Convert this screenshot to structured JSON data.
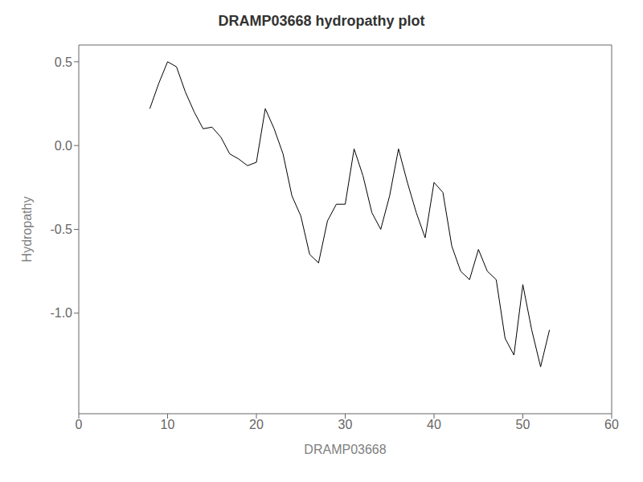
{
  "chart_data": {
    "type": "line",
    "title": "DRAMP03668 hydropathy plot",
    "xlabel": "DRAMP03668",
    "ylabel": "Hydropathy",
    "xlim": [
      0,
      60
    ],
    "ylim": [
      -1.6,
      0.6
    ],
    "xticks": [
      0,
      10,
      20,
      30,
      40,
      50,
      60
    ],
    "yticks": [
      0.5,
      {
        "value": 0.0,
        "label": "0.0"
      },
      -0.5,
      {
        "value": -1.0,
        "label": "-1.0"
      }
    ],
    "color": "#000000",
    "grid": false,
    "x": [
      8,
      9,
      10,
      11,
      12,
      13,
      14,
      15,
      16,
      17,
      18,
      19,
      20,
      21,
      22,
      23,
      24,
      25,
      26,
      27,
      28,
      29,
      30,
      31,
      32,
      33,
      34,
      35,
      36,
      37,
      38,
      39,
      40,
      41,
      42,
      43,
      44,
      45,
      46,
      47,
      48,
      49,
      50,
      51,
      52,
      53
    ],
    "values": [
      0.22,
      0.37,
      0.5,
      0.47,
      0.32,
      0.2,
      0.1,
      0.11,
      0.05,
      -0.05,
      -0.08,
      -0.12,
      -0.1,
      0.22,
      0.1,
      -0.05,
      -0.3,
      -0.42,
      -0.65,
      -0.7,
      -0.45,
      -0.35,
      -0.35,
      -0.02,
      -0.18,
      -0.4,
      -0.5,
      -0.3,
      -0.02,
      -0.22,
      -0.4,
      -0.55,
      -0.22,
      -0.28,
      -0.6,
      -0.75,
      -0.8,
      -0.62,
      -0.75,
      -0.8,
      -1.15,
      -1.25,
      -0.83,
      -1.1,
      -1.32,
      -1.1
    ]
  }
}
